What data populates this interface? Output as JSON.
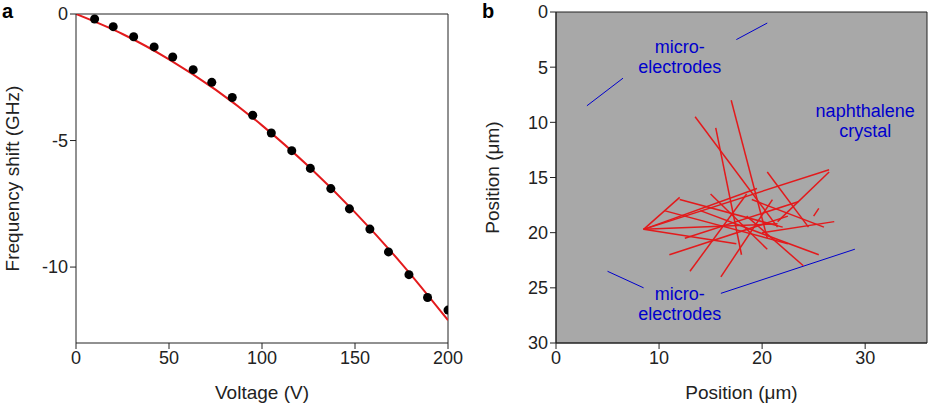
{
  "chart_data": [
    {
      "type": "scatter",
      "panel": "a",
      "x_label": "Voltage (V)",
      "y_label": "Frequency shift (GHz)",
      "xlim": [
        0,
        200
      ],
      "xticks": [
        0,
        50,
        100,
        150,
        200
      ],
      "ylim": [
        -13,
        0
      ],
      "yticks": [
        -10,
        -5,
        0
      ],
      "grid": false,
      "series": [
        {
          "type": "scatter",
          "color": "#000000",
          "marker": "circle",
          "x": [
            10,
            20,
            31,
            42,
            52,
            63,
            73,
            84,
            95,
            105,
            116,
            126,
            137,
            147,
            158,
            168,
            179,
            189,
            200
          ],
          "values": [
            -0.2,
            -0.5,
            -0.9,
            -1.3,
            -1.7,
            -2.2,
            -2.7,
            -3.3,
            -4.0,
            -4.7,
            -5.4,
            -6.1,
            -6.9,
            -7.7,
            -8.5,
            -9.4,
            -10.3,
            -11.2,
            -11.7
          ]
        },
        {
          "type": "line",
          "color": "#e31a1c",
          "line_style": "solid",
          "x": [
            0,
            25,
            50,
            75,
            100,
            125,
            150,
            175,
            200
          ],
          "values": [
            0,
            -0.79,
            -1.79,
            -2.99,
            -4.4,
            -6.02,
            -7.84,
            -9.86,
            -12.1
          ]
        }
      ]
    },
    {
      "type": "line",
      "panel": "b",
      "x_label": "Position (μm)",
      "y_label": "Position (μm)",
      "xlim": [
        0,
        36
      ],
      "xticks": [
        0,
        10,
        20,
        30
      ],
      "ylim": [
        0,
        30
      ],
      "yticks": [
        0,
        5,
        10,
        15,
        20,
        25,
        30
      ],
      "grid": false,
      "color": "#e31a1c",
      "annotations": [
        {
          "text": [
            "micro-",
            "electrodes"
          ]
        },
        {
          "text": [
            "naphthalene",
            "crystal"
          ]
        },
        {
          "text": [
            "micro-",
            "electrodes"
          ]
        }
      ],
      "segments": [
        {
          "x": [
            8.5,
            21.5
          ],
          "y": [
            19.7,
            19.2
          ]
        },
        {
          "x": [
            8.5,
            12
          ],
          "y": [
            19.7,
            16.8
          ]
        },
        {
          "x": [
            8.5,
            19.5
          ],
          "y": [
            19.7,
            16
          ]
        },
        {
          "x": [
            8.5,
            26.5
          ],
          "y": [
            19.7,
            14.3
          ]
        },
        {
          "x": [
            8.5,
            17.5
          ],
          "y": [
            19.7,
            21
          ]
        },
        {
          "x": [
            12,
            22
          ],
          "y": [
            17,
            19.5
          ]
        },
        {
          "x": [
            13.5,
            21.5
          ],
          "y": [
            9.5,
            19.5
          ]
        },
        {
          "x": [
            15.5,
            18
          ],
          "y": [
            10.5,
            22
          ]
        },
        {
          "x": [
            17,
            20.5
          ],
          "y": [
            8,
            20.5
          ]
        },
        {
          "x": [
            11,
            22.5
          ],
          "y": [
            22,
            18.5
          ]
        },
        {
          "x": [
            13,
            18.5
          ],
          "y": [
            23.5,
            16.5
          ]
        },
        {
          "x": [
            16,
            21
          ],
          "y": [
            24,
            17
          ]
        },
        {
          "x": [
            21.5,
            26.5
          ],
          "y": [
            19,
            14.5
          ]
        },
        {
          "x": [
            20,
            27
          ],
          "y": [
            20,
            19
          ]
        },
        {
          "x": [
            19,
            26
          ],
          "y": [
            17,
            19.5
          ]
        },
        {
          "x": [
            25.5,
            25
          ],
          "y": [
            17.8,
            18.5
          ]
        },
        {
          "x": [
            14,
            25.5
          ],
          "y": [
            18,
            22
          ]
        },
        {
          "x": [
            12.5,
            23.5
          ],
          "y": [
            20.5,
            17.2
          ]
        },
        {
          "x": [
            18.5,
            24
          ],
          "y": [
            18.5,
            23
          ]
        },
        {
          "x": [
            15,
            20.5
          ],
          "y": [
            16.5,
            21.5
          ]
        },
        {
          "x": [
            10.5,
            22.5
          ],
          "y": [
            18,
            21
          ]
        },
        {
          "x": [
            20.5,
            24.5
          ],
          "y": [
            14.5,
            19.5
          ]
        }
      ]
    }
  ]
}
